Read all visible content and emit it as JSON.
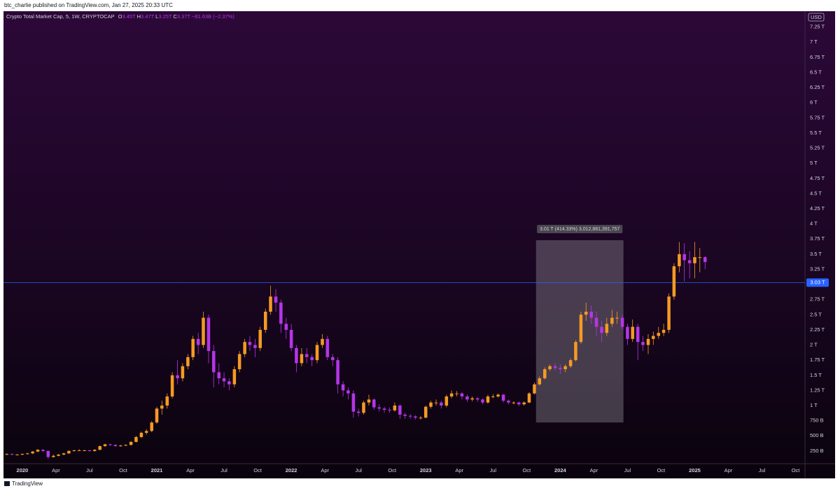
{
  "header": {
    "publisher": "btc_charlie published on TradingView.com, Jan 27, 2025 20:33 UTC"
  },
  "chart_data": {
    "type": "candlestick",
    "title": "Crypto Total Market Cap, 5, 1W, CRYPTOCAP",
    "ohlc_legend": [
      {
        "key": "O",
        "value": "3.45T"
      },
      {
        "key": "H",
        "value": "3.47T"
      },
      {
        "key": "L",
        "value": "3.25T"
      },
      {
        "key": "C",
        "value": "3.37T"
      }
    ],
    "change": "−81.63B (−2.37%)",
    "currency": "USD",
    "x": [
      2019.885,
      2019.923,
      2019.962,
      2020.0,
      2020.038,
      2020.077,
      2020.115,
      2020.154,
      2020.192,
      2020.231,
      2020.269,
      2020.308,
      2020.346,
      2020.385,
      2020.423,
      2020.462,
      2020.5,
      2020.538,
      2020.577,
      2020.615,
      2020.654,
      2020.692,
      2020.731,
      2020.769,
      2020.808,
      2020.846,
      2020.885,
      2020.923,
      2020.962,
      2021.0,
      2021.038,
      2021.077,
      2021.115,
      2021.154,
      2021.192,
      2021.231,
      2021.269,
      2021.308,
      2021.346,
      2021.385,
      2021.423,
      2021.462,
      2021.5,
      2021.538,
      2021.577,
      2021.615,
      2021.654,
      2021.692,
      2021.731,
      2021.769,
      2021.808,
      2021.846,
      2021.885,
      2021.923,
      2021.962,
      2022.0,
      2022.038,
      2022.077,
      2022.115,
      2022.154,
      2022.192,
      2022.231,
      2022.269,
      2022.308,
      2022.346,
      2022.385,
      2022.423,
      2022.462,
      2022.5,
      2022.538,
      2022.577,
      2022.615,
      2022.654,
      2022.692,
      2022.731,
      2022.769,
      2022.808,
      2022.846,
      2022.885,
      2022.923,
      2022.962,
      2023.0,
      2023.038,
      2023.077,
      2023.115,
      2023.154,
      2023.192,
      2023.231,
      2023.269,
      2023.308,
      2023.346,
      2023.385,
      2023.423,
      2023.462,
      2023.5,
      2023.538,
      2023.577,
      2023.615,
      2023.654,
      2023.692,
      2023.731,
      2023.769,
      2023.808,
      2023.846,
      2023.885,
      2023.923,
      2023.962,
      2024.0,
      2024.038,
      2024.077,
      2024.115,
      2024.154,
      2024.192,
      2024.231,
      2024.269,
      2024.308,
      2024.346,
      2024.385,
      2024.423,
      2024.462,
      2024.5,
      2024.538,
      2024.577,
      2024.615,
      2024.654,
      2024.692,
      2024.731,
      2024.769,
      2024.808,
      2024.846,
      2024.885,
      2024.923,
      2024.962,
      2025.0,
      2025.038,
      2025.077
    ],
    "open": [
      0.19,
      0.2,
      0.19,
      0.19,
      0.2,
      0.21,
      0.24,
      0.27,
      0.25,
      0.15,
      0.17,
      0.19,
      0.21,
      0.25,
      0.26,
      0.26,
      0.26,
      0.25,
      0.27,
      0.33,
      0.36,
      0.35,
      0.33,
      0.34,
      0.35,
      0.4,
      0.48,
      0.55,
      0.58,
      0.72,
      0.95,
      1.0,
      1.15,
      1.5,
      1.45,
      1.65,
      1.8,
      2.1,
      2.0,
      2.45,
      1.9,
      1.55,
      1.45,
      1.4,
      1.35,
      1.6,
      1.85,
      2.05,
      2.0,
      1.95,
      2.25,
      2.55,
      2.8,
      2.7,
      2.35,
      2.25,
      1.95,
      1.7,
      1.85,
      1.8,
      1.75,
      2.0,
      2.1,
      1.8,
      1.75,
      1.35,
      1.25,
      1.2,
      0.9,
      0.88,
      1.05,
      1.1,
      0.97,
      0.95,
      0.93,
      0.92,
      1.0,
      0.85,
      0.83,
      0.82,
      0.8,
      0.8,
      0.98,
      1.05,
      1.05,
      1.0,
      1.15,
      1.2,
      1.2,
      1.15,
      1.1,
      1.12,
      1.1,
      1.05,
      1.15,
      1.15,
      1.18,
      1.08,
      1.05,
      1.05,
      1.02,
      1.05,
      1.2,
      1.35,
      1.45,
      1.6,
      1.65,
      1.62,
      1.6,
      1.65,
      1.75,
      2.05,
      2.5,
      2.55,
      2.45,
      2.3,
      2.2,
      2.35,
      2.45,
      2.45,
      2.3,
      2.1,
      2.3,
      2.05,
      2.0,
      2.1,
      2.15,
      2.2,
      2.25,
      2.8,
      3.3,
      3.5,
      3.4,
      3.35,
      3.45,
      3.45
    ],
    "high": [
      0.21,
      0.21,
      0.2,
      0.21,
      0.22,
      0.25,
      0.28,
      0.28,
      0.26,
      0.19,
      0.2,
      0.22,
      0.26,
      0.27,
      0.28,
      0.27,
      0.27,
      0.28,
      0.34,
      0.37,
      0.37,
      0.36,
      0.35,
      0.36,
      0.41,
      0.5,
      0.57,
      0.61,
      0.74,
      0.98,
      1.08,
      1.2,
      1.55,
      1.75,
      1.7,
      1.85,
      2.15,
      2.2,
      2.55,
      2.5,
      2.0,
      1.7,
      1.55,
      1.45,
      1.65,
      1.9,
      2.1,
      2.15,
      2.1,
      2.3,
      2.6,
      2.98,
      2.92,
      2.75,
      2.45,
      2.35,
      2.0,
      1.95,
      1.95,
      1.85,
      2.05,
      2.18,
      2.15,
      1.85,
      1.8,
      1.4,
      1.3,
      1.25,
      0.95,
      1.08,
      1.18,
      1.12,
      1.02,
      0.98,
      0.97,
      1.05,
      1.02,
      0.88,
      0.86,
      0.84,
      0.83,
      1.0,
      1.08,
      1.1,
      1.08,
      1.18,
      1.25,
      1.24,
      1.22,
      1.18,
      1.15,
      1.14,
      1.12,
      1.18,
      1.19,
      1.2,
      1.19,
      1.1,
      1.07,
      1.07,
      1.07,
      1.22,
      1.38,
      1.48,
      1.63,
      1.68,
      1.7,
      1.68,
      1.68,
      1.78,
      2.08,
      2.55,
      2.7,
      2.65,
      2.55,
      2.4,
      2.45,
      2.58,
      2.55,
      2.5,
      2.35,
      2.42,
      2.35,
      2.15,
      2.18,
      2.22,
      2.3,
      2.35,
      2.85,
      3.35,
      3.7,
      3.68,
      3.55,
      3.7,
      3.6,
      3.47
    ],
    "low": [
      0.18,
      0.18,
      0.18,
      0.18,
      0.19,
      0.2,
      0.23,
      0.23,
      0.12,
      0.14,
      0.16,
      0.18,
      0.2,
      0.24,
      0.25,
      0.25,
      0.24,
      0.24,
      0.26,
      0.32,
      0.33,
      0.32,
      0.32,
      0.33,
      0.34,
      0.39,
      0.46,
      0.52,
      0.56,
      0.7,
      0.85,
      0.95,
      1.12,
      1.35,
      1.4,
      1.6,
      1.75,
      1.85,
      1.95,
      1.7,
      1.3,
      1.35,
      1.3,
      1.25,
      1.3,
      1.55,
      1.8,
      1.9,
      1.8,
      1.9,
      2.2,
      2.5,
      2.55,
      2.2,
      2.1,
      1.9,
      1.55,
      1.65,
      1.7,
      1.65,
      1.7,
      1.95,
      1.75,
      1.65,
      1.2,
      1.15,
      1.1,
      0.8,
      0.82,
      0.85,
      1.0,
      0.93,
      0.9,
      0.88,
      0.88,
      0.9,
      0.78,
      0.78,
      0.78,
      0.77,
      0.77,
      0.79,
      0.95,
      1.0,
      0.95,
      0.97,
      1.12,
      1.15,
      1.1,
      1.06,
      1.07,
      1.06,
      1.02,
      1.03,
      1.12,
      1.13,
      1.05,
      1.02,
      1.02,
      0.99,
      1.0,
      1.04,
      1.18,
      1.33,
      1.43,
      1.57,
      1.58,
      1.52,
      1.55,
      1.62,
      1.73,
      2.02,
      2.4,
      2.35,
      2.15,
      2.05,
      2.15,
      2.3,
      2.35,
      2.25,
      2.0,
      2.05,
      1.75,
      1.9,
      1.85,
      2.0,
      2.1,
      2.15,
      2.2,
      2.75,
      3.2,
      3.05,
      3.1,
      3.1,
      3.2,
      3.25
    ],
    "close": [
      0.2,
      0.19,
      0.19,
      0.2,
      0.21,
      0.24,
      0.27,
      0.25,
      0.15,
      0.17,
      0.19,
      0.21,
      0.25,
      0.26,
      0.26,
      0.26,
      0.25,
      0.27,
      0.33,
      0.36,
      0.35,
      0.33,
      0.34,
      0.35,
      0.4,
      0.48,
      0.55,
      0.58,
      0.72,
      0.95,
      1.0,
      1.15,
      1.5,
      1.45,
      1.65,
      1.8,
      2.1,
      2.0,
      2.45,
      1.9,
      1.55,
      1.45,
      1.4,
      1.35,
      1.6,
      1.85,
      2.05,
      2.0,
      1.95,
      2.25,
      2.55,
      2.8,
      2.7,
      2.35,
      2.25,
      1.95,
      1.7,
      1.85,
      1.8,
      1.75,
      2.0,
      2.1,
      1.8,
      1.75,
      1.35,
      1.25,
      1.2,
      0.9,
      0.88,
      1.05,
      1.1,
      0.97,
      0.95,
      0.93,
      0.92,
      1.0,
      0.85,
      0.83,
      0.82,
      0.8,
      0.8,
      0.98,
      1.05,
      1.05,
      1.0,
      1.15,
      1.2,
      1.2,
      1.15,
      1.1,
      1.12,
      1.1,
      1.05,
      1.15,
      1.15,
      1.18,
      1.08,
      1.05,
      1.05,
      1.02,
      1.05,
      1.2,
      1.35,
      1.45,
      1.6,
      1.65,
      1.62,
      1.6,
      1.65,
      1.75,
      2.05,
      2.5,
      2.55,
      2.45,
      2.3,
      2.2,
      2.35,
      2.45,
      2.45,
      2.3,
      2.1,
      2.3,
      2.05,
      2.0,
      2.1,
      2.15,
      2.2,
      2.25,
      2.8,
      3.3,
      3.5,
      3.4,
      3.35,
      3.45,
      3.45,
      3.37
    ],
    "up_color": "#f59a23",
    "down_color": "#b535e8",
    "xlim": [
      2019.86,
      2025.82
    ],
    "xticks": [
      {
        "value": 2020,
        "label": "2020"
      },
      {
        "value": 2020.25,
        "label": "Apr"
      },
      {
        "value": 2020.5,
        "label": "Jul"
      },
      {
        "value": 2020.75,
        "label": "Oct"
      },
      {
        "value": 2021,
        "label": "2021"
      },
      {
        "value": 2021.25,
        "label": "Apr"
      },
      {
        "value": 2021.5,
        "label": "Jul"
      },
      {
        "value": 2021.75,
        "label": "Oct"
      },
      {
        "value": 2022,
        "label": "2022"
      },
      {
        "value": 2022.25,
        "label": "Apr"
      },
      {
        "value": 2022.5,
        "label": "Jul"
      },
      {
        "value": 2022.75,
        "label": "Oct"
      },
      {
        "value": 2023,
        "label": "2023"
      },
      {
        "value": 2023.25,
        "label": "Apr"
      },
      {
        "value": 2023.5,
        "label": "Jul"
      },
      {
        "value": 2023.75,
        "label": "Oct"
      },
      {
        "value": 2024,
        "label": "2024"
      },
      {
        "value": 2024.25,
        "label": "Apr"
      },
      {
        "value": 2024.5,
        "label": "Jul"
      },
      {
        "value": 2024.75,
        "label": "Oct"
      },
      {
        "value": 2025,
        "label": "2025"
      },
      {
        "value": 2025.25,
        "label": "Apr"
      },
      {
        "value": 2025.5,
        "label": "Jul"
      },
      {
        "value": 2025.75,
        "label": "Oct"
      }
    ],
    "ylim": [
      0.04,
      7.5
    ],
    "yticks": [
      {
        "value": 0.25,
        "label": "250 B"
      },
      {
        "value": 0.5,
        "label": "500 B"
      },
      {
        "value": 0.75,
        "label": "750 B"
      },
      {
        "value": 1,
        "label": "1 T"
      },
      {
        "value": 1.25,
        "label": "1.25 T"
      },
      {
        "value": 1.5,
        "label": "1.5 T"
      },
      {
        "value": 1.75,
        "label": "1.75 T"
      },
      {
        "value": 2,
        "label": "2 T"
      },
      {
        "value": 2.25,
        "label": "2.25 T"
      },
      {
        "value": 2.5,
        "label": "2.5 T"
      },
      {
        "value": 2.75,
        "label": "2.75 T"
      },
      {
        "value": 3,
        "label": "3 T"
      },
      {
        "value": 3.25,
        "label": "3.25 T"
      },
      {
        "value": 3.5,
        "label": "3.5 T"
      },
      {
        "value": 3.75,
        "label": "3.75 T"
      },
      {
        "value": 4,
        "label": "4 T"
      },
      {
        "value": 4.25,
        "label": "4.25 T"
      },
      {
        "value": 4.5,
        "label": "4.5 T"
      },
      {
        "value": 4.75,
        "label": "4.75 T"
      },
      {
        "value": 5,
        "label": "5 T"
      },
      {
        "value": 5.25,
        "label": "5.25 T"
      },
      {
        "value": 5.5,
        "label": "5.5 T"
      },
      {
        "value": 5.75,
        "label": "5.75 T"
      },
      {
        "value": 6,
        "label": "6 T"
      },
      {
        "value": 6.25,
        "label": "6.25 T"
      },
      {
        "value": 6.5,
        "label": "6.5 T"
      },
      {
        "value": 6.75,
        "label": "6.75 T"
      },
      {
        "value": 7,
        "label": "7 T"
      },
      {
        "value": 7.25,
        "label": "7.25 T"
      }
    ],
    "grid": false,
    "price_line": {
      "value": 3.03,
      "label": "3.03 T",
      "color": "#2962ff"
    },
    "range_box": {
      "x": [
        2023.82,
        2024.47
      ],
      "y": [
        0.72,
        3.73
      ],
      "label": "3.01 T (414.33%) 3,012,881,391,757"
    }
  },
  "footer": {
    "brand": "TradingView"
  }
}
